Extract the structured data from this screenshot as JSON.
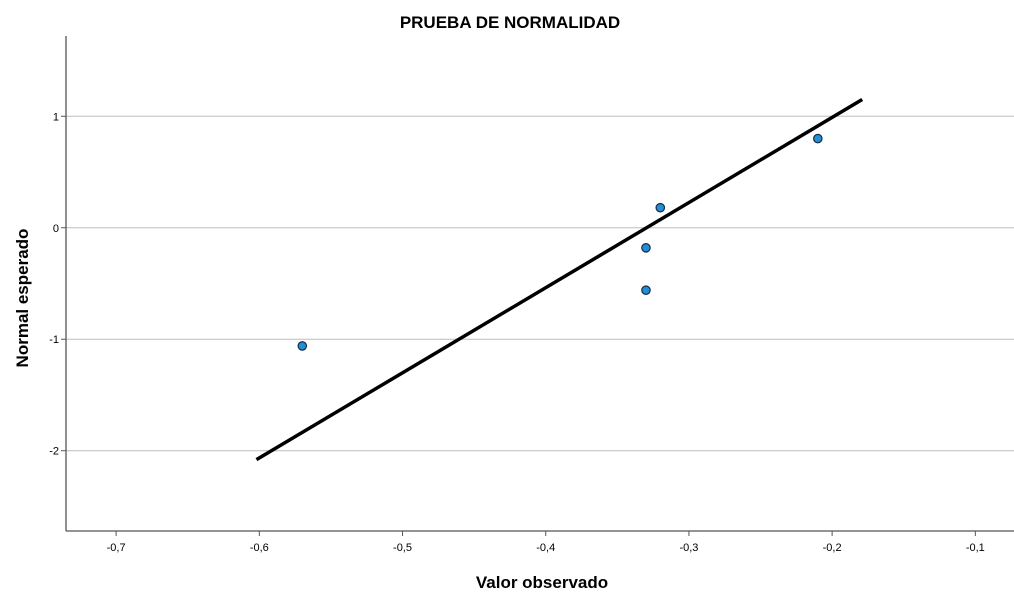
{
  "chart_data": {
    "type": "scatter",
    "title": "PRUEBA DE NORMALIDAD",
    "xlabel": "Valor observado",
    "ylabel": "Normal esperado",
    "xlim": [
      -0.735,
      -0.073
    ],
    "ylim": [
      -2.72,
      1.72
    ],
    "x_ticks": [
      -0.7,
      -0.6,
      -0.5,
      -0.4,
      -0.3,
      -0.2,
      -0.1
    ],
    "x_tick_labels": [
      "-0,7",
      "-0,6",
      "-0,5",
      "-0,4",
      "-0,3",
      "-0,2",
      "-0,1"
    ],
    "y_ticks": [
      1,
      0,
      -1,
      -2
    ],
    "y_tick_labels": [
      "1",
      "0",
      "-1",
      "-2"
    ],
    "grid": "horizontal",
    "legend": "none",
    "points": [
      {
        "x": -0.57,
        "y": -1.06
      },
      {
        "x": -0.33,
        "y": -0.56
      },
      {
        "x": -0.33,
        "y": -0.18
      },
      {
        "x": -0.32,
        "y": 0.18
      },
      {
        "x": -0.21,
        "y": 0.8
      }
    ],
    "reference_line": [
      {
        "x": -0.602,
        "y": -2.08
      },
      {
        "x": -0.179,
        "y": 1.15
      }
    ],
    "colors": {
      "point_fill": "#1f8fd8",
      "point_stroke": "#1a2a44",
      "line": "#000000",
      "grid": "#bdbdbd"
    }
  }
}
